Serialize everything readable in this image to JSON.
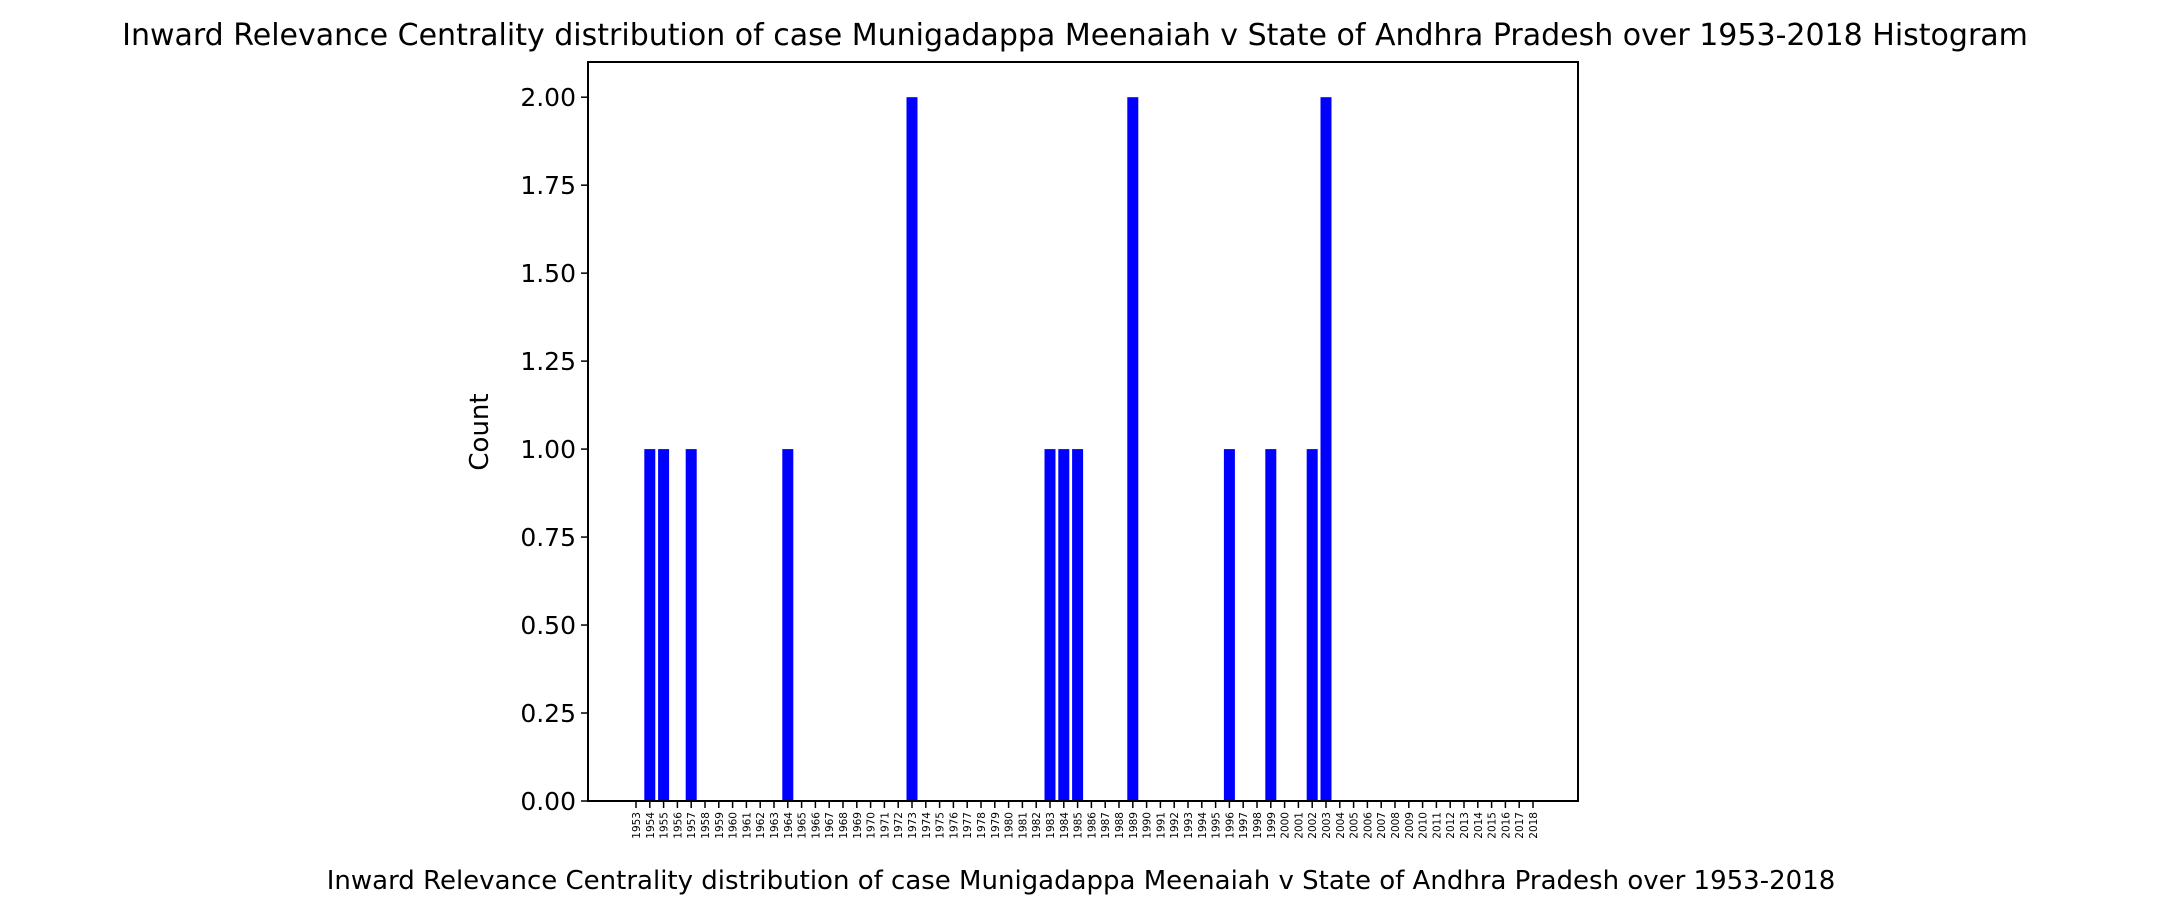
{
  "chart_data": {
    "type": "bar",
    "title": "Inward Relevance Centrality distribution of case Munigadappa Meenaiah v State of Andhra Pradesh over 1953-2018 Histogram",
    "xlabel": "Inward Relevance Centrality distribution of case Munigadappa Meenaiah v State of Andhra Pradesh over 1953-2018",
    "ylabel": "Count",
    "ylim": [
      0,
      2.1
    ],
    "yticks": [
      "0.00",
      "0.25",
      "0.50",
      "0.75",
      "1.00",
      "1.25",
      "1.50",
      "1.75",
      "2.00"
    ],
    "grid": false,
    "bar_color": "#0000ff",
    "categories": [
      "1953",
      "1954",
      "1955",
      "1956",
      "1957",
      "1958",
      "1959",
      "1960",
      "1961",
      "1962",
      "1963",
      "1964",
      "1965",
      "1966",
      "1967",
      "1968",
      "1969",
      "1970",
      "1971",
      "1972",
      "1973",
      "1974",
      "1975",
      "1976",
      "1977",
      "1978",
      "1979",
      "1980",
      "1981",
      "1982",
      "1983",
      "1984",
      "1985",
      "1986",
      "1987",
      "1988",
      "1989",
      "1990",
      "1991",
      "1992",
      "1993",
      "1994",
      "1995",
      "1996",
      "1997",
      "1998",
      "1999",
      "2000",
      "2001",
      "2002",
      "2003",
      "2004",
      "2005",
      "2006",
      "2007",
      "2008",
      "2009",
      "2010",
      "2011",
      "2012",
      "2013",
      "2014",
      "2015",
      "2016",
      "2017",
      "2018"
    ],
    "values": [
      0,
      1,
      1,
      0,
      1,
      0,
      0,
      0,
      0,
      0,
      0,
      1,
      0,
      0,
      0,
      0,
      0,
      0,
      0,
      0,
      2,
      0,
      0,
      0,
      0,
      0,
      0,
      0,
      0,
      0,
      1,
      1,
      1,
      0,
      0,
      0,
      2,
      0,
      0,
      0,
      0,
      0,
      0,
      1,
      0,
      0,
      1,
      0,
      0,
      1,
      2,
      0,
      0,
      0,
      0,
      0,
      0,
      0,
      0,
      0,
      0,
      0,
      0,
      0,
      0,
      0
    ]
  }
}
